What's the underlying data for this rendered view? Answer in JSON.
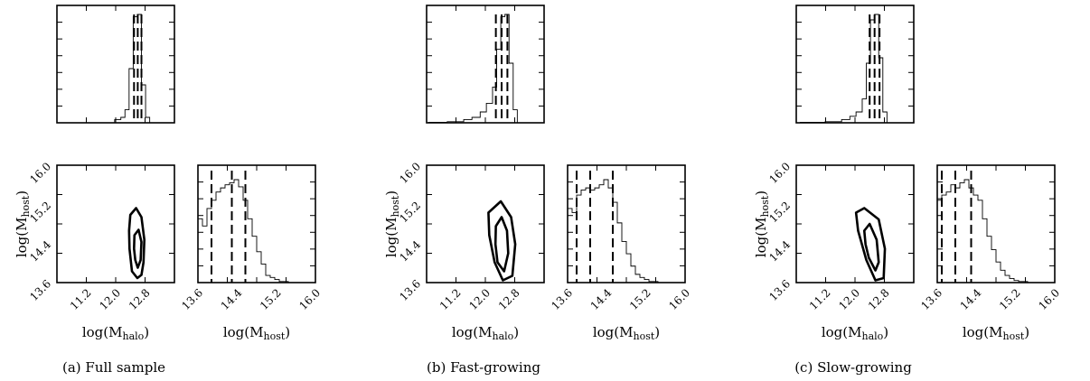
{
  "figure": {
    "captions": [
      {
        "tag": "(a)",
        "text": "Full sample"
      },
      {
        "tag": "(b)",
        "text": "Fast-growing"
      },
      {
        "tag": "(c)",
        "text": "Slow-growing"
      }
    ],
    "labels": {
      "x_halo": "log(M",
      "x_halo_sub": "halo",
      "x_host": "log(M",
      "x_host_sub": "host",
      "y_host": "log(M",
      "y_host_sub": "host",
      "close": ")"
    }
  },
  "chart_data": [
    {
      "id": "a",
      "type": "corner",
      "caption": "(a) Full sample",
      "params": [
        "log(M_halo)",
        "log(M_host)"
      ],
      "x_ticks": [
        "11.2",
        "12.0",
        "12.8"
      ],
      "host_ticks": [
        "13.6",
        "14.4",
        "15.2",
        "16.0"
      ],
      "halo_range": [
        10.9,
        13.75
      ],
      "host_range": [
        13.45,
        16.05
      ],
      "halo_hist": {
        "edges": [
          12.3,
          12.45,
          12.55,
          12.65,
          12.75,
          12.85,
          12.95,
          13.05,
          13.15,
          13.25
        ],
        "counts": [
          0.03,
          0.05,
          0.12,
          0.5,
          0.98,
          1.0,
          0.35,
          0.05,
          0.0
        ],
        "quantiles": [
          12.77,
          12.86,
          12.95
        ]
      },
      "host_hist": {
        "edges": [
          13.45,
          13.55,
          13.65,
          13.75,
          13.85,
          13.95,
          14.05,
          14.15,
          14.25,
          14.35,
          14.45,
          14.55,
          14.65,
          14.75,
          14.85,
          14.95,
          15.05,
          15.15,
          15.25,
          15.35,
          15.45,
          15.55
        ],
        "counts": [
          0.62,
          0.55,
          0.72,
          0.8,
          0.88,
          0.92,
          0.95,
          0.97,
          1.0,
          0.93,
          0.8,
          0.62,
          0.45,
          0.3,
          0.18,
          0.07,
          0.05,
          0.03,
          0.01,
          0.01,
          0.0
        ],
        "quantiles": [
          13.75,
          14.2,
          14.5
        ]
      },
      "contours": [
        [
          [
            12.68,
            14.95
          ],
          [
            12.82,
            15.1
          ],
          [
            12.95,
            14.9
          ],
          [
            13.02,
            14.4
          ],
          [
            13.0,
            13.9
          ],
          [
            12.95,
            13.62
          ],
          [
            12.85,
            13.55
          ],
          [
            12.72,
            13.7
          ],
          [
            12.66,
            14.2
          ],
          [
            12.65,
            14.6
          ]
        ],
        [
          [
            12.78,
            14.5
          ],
          [
            12.88,
            14.62
          ],
          [
            12.95,
            14.35
          ],
          [
            12.93,
            13.95
          ],
          [
            12.86,
            13.78
          ],
          [
            12.8,
            13.95
          ],
          [
            12.77,
            14.2
          ]
        ]
      ]
    },
    {
      "id": "b",
      "type": "corner",
      "caption": "(b) Fast-growing",
      "params": [
        "log(M_halo)",
        "log(M_host)"
      ],
      "x_ticks": [
        "11.2",
        "12.0",
        "12.8"
      ],
      "host_ticks": [
        "13.6",
        "14.4",
        "15.2",
        "16.0"
      ],
      "halo_range": [
        10.9,
        13.75
      ],
      "host_range": [
        13.45,
        16.05
      ],
      "halo_hist": {
        "edges": [
          10.95,
          11.4,
          11.8,
          12.0,
          12.2,
          12.35,
          12.5,
          12.6,
          12.7,
          12.8,
          12.9,
          13.0,
          13.1,
          13.2
        ],
        "counts": [
          0.005,
          0.01,
          0.03,
          0.05,
          0.1,
          0.18,
          0.33,
          0.68,
          0.98,
          1.0,
          0.55,
          0.12,
          0.0
        ],
        "quantiles": [
          12.58,
          12.72,
          12.86
        ]
      },
      "host_hist": {
        "edges": [
          13.45,
          13.55,
          13.65,
          13.75,
          13.85,
          13.95,
          14.05,
          14.15,
          14.25,
          14.35,
          14.45,
          14.55,
          14.65,
          14.75,
          14.85,
          14.95,
          15.05,
          15.15,
          15.25,
          15.35,
          15.45,
          15.55
        ],
        "counts": [
          0.72,
          0.68,
          0.85,
          0.9,
          0.92,
          0.9,
          0.92,
          0.95,
          1.0,
          0.92,
          0.78,
          0.58,
          0.4,
          0.28,
          0.16,
          0.08,
          0.05,
          0.03,
          0.01,
          0.01,
          0.0
        ],
        "quantiles": [
          13.65,
          13.95,
          14.45
        ]
      },
      "contours": [
        [
          [
            12.4,
            15.0
          ],
          [
            12.7,
            15.25
          ],
          [
            12.95,
            14.9
          ],
          [
            13.05,
            14.3
          ],
          [
            12.98,
            13.6
          ],
          [
            12.75,
            13.5
          ],
          [
            12.55,
            13.9
          ],
          [
            12.42,
            14.5
          ]
        ],
        [
          [
            12.58,
            14.7
          ],
          [
            12.72,
            14.9
          ],
          [
            12.85,
            14.6
          ],
          [
            12.88,
            14.1
          ],
          [
            12.78,
            13.7
          ],
          [
            12.62,
            13.9
          ],
          [
            12.57,
            14.3
          ]
        ]
      ]
    },
    {
      "id": "c",
      "type": "corner",
      "caption": "(c) Slow-growing",
      "params": [
        "log(M_halo)",
        "log(M_host)"
      ],
      "x_ticks": [
        "11.2",
        "12.0",
        "12.8"
      ],
      "host_ticks": [
        "13.6",
        "14.4",
        "15.2",
        "16.0"
      ],
      "halo_range": [
        10.9,
        13.75
      ],
      "host_range": [
        13.45,
        16.05
      ],
      "halo_hist": {
        "edges": [
          11.0,
          11.6,
          12.0,
          12.2,
          12.35,
          12.5,
          12.6,
          12.7,
          12.8,
          12.9,
          13.0,
          13.1,
          13.2
        ],
        "counts": [
          0.005,
          0.01,
          0.03,
          0.06,
          0.1,
          0.22,
          0.55,
          0.95,
          1.0,
          0.6,
          0.1,
          0.0
        ],
        "quantiles": [
          12.68,
          12.8,
          12.92
        ]
      },
      "host_hist": {
        "edges": [
          13.45,
          13.55,
          13.65,
          13.75,
          13.85,
          13.95,
          14.05,
          14.15,
          14.25,
          14.35,
          14.45,
          14.55,
          14.65,
          14.75,
          14.85,
          14.95,
          15.05,
          15.15,
          15.25,
          15.35,
          15.45,
          15.55
        ],
        "counts": [
          0.8,
          0.85,
          0.88,
          0.95,
          0.92,
          0.97,
          1.0,
          0.92,
          0.85,
          0.8,
          0.62,
          0.45,
          0.32,
          0.2,
          0.12,
          0.07,
          0.04,
          0.02,
          0.01,
          0.01,
          0.0
        ],
        "quantiles": [
          13.55,
          13.85,
          14.2
        ]
      },
      "contours": [
        [
          [
            12.35,
            15.0
          ],
          [
            12.55,
            15.1
          ],
          [
            12.9,
            14.85
          ],
          [
            13.05,
            14.2
          ],
          [
            13.02,
            13.55
          ],
          [
            12.82,
            13.5
          ],
          [
            12.6,
            13.95
          ],
          [
            12.4,
            14.6
          ]
        ],
        [
          [
            12.55,
            14.6
          ],
          [
            12.68,
            14.75
          ],
          [
            12.85,
            14.4
          ],
          [
            12.9,
            13.9
          ],
          [
            12.82,
            13.72
          ],
          [
            12.66,
            14.0
          ],
          [
            12.58,
            14.3
          ]
        ]
      ]
    }
  ]
}
